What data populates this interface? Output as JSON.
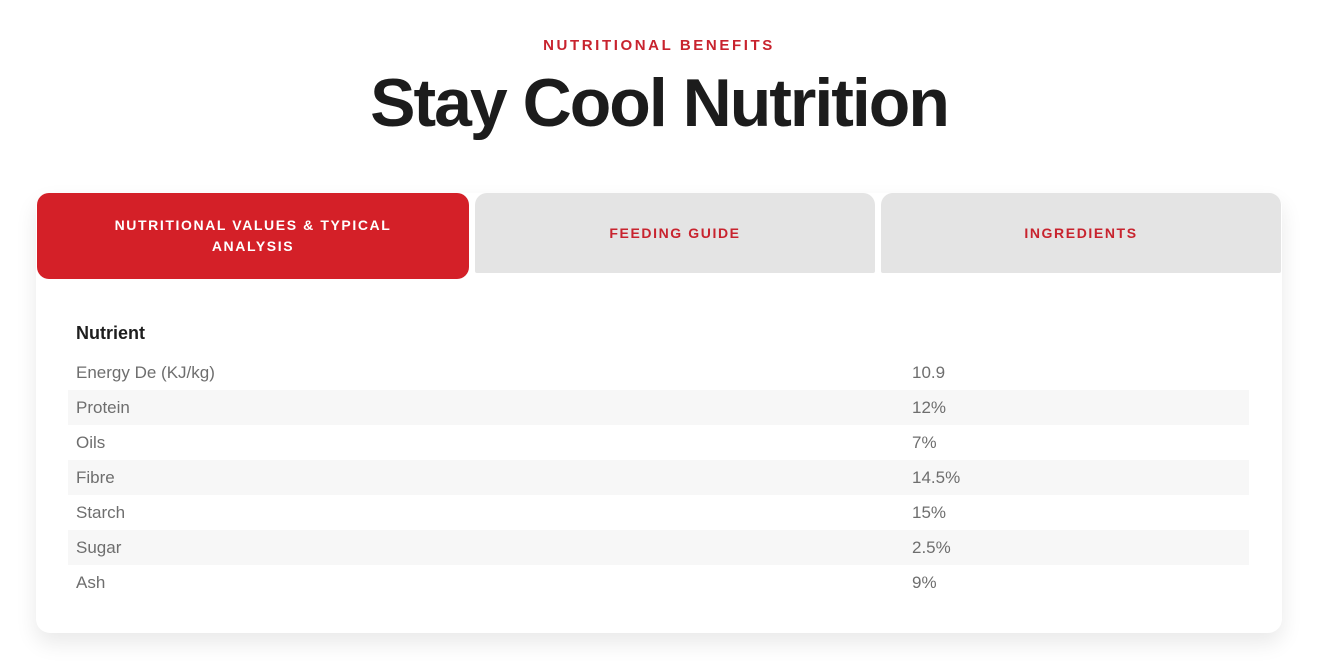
{
  "page": {
    "eyebrow": "NUTRITIONAL BENEFITS",
    "title": "Stay Cool Nutrition"
  },
  "tabs": [
    {
      "label": "NUTRITIONAL VALUES & TYPICAL ANALYSIS",
      "active": true
    },
    {
      "label": "FEEDING GUIDE",
      "active": false
    },
    {
      "label": "INGREDIENTS",
      "active": false
    }
  ],
  "table": {
    "header": "Nutrient",
    "rows": [
      {
        "label": "Energy De (KJ/kg)",
        "value": "10.9"
      },
      {
        "label": "Protein",
        "value": "12%"
      },
      {
        "label": "Oils",
        "value": "7%"
      },
      {
        "label": "Fibre",
        "value": "14.5%"
      },
      {
        "label": "Starch",
        "value": "15%"
      },
      {
        "label": "Sugar",
        "value": "2.5%"
      },
      {
        "label": "Ash",
        "value": "9%"
      }
    ]
  },
  "colors": {
    "brand_red": "#d42028",
    "eyebrow_red": "#c8232e",
    "inactive_tab_bg": "#e4e4e4",
    "stripe": "#f7f7f7",
    "heading_text": "#1c1c1c",
    "row_text": "#6e6e6e"
  }
}
